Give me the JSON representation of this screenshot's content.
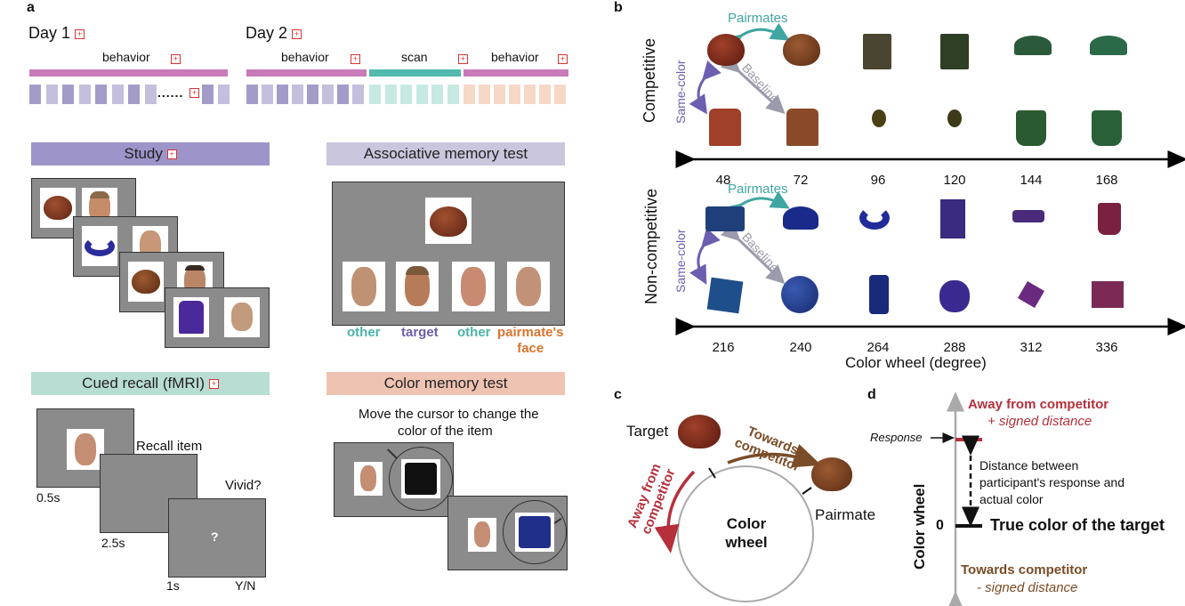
{
  "panels": {
    "a": "a",
    "b": "b",
    "c": "c",
    "d": "d"
  },
  "timeline": {
    "day1": "Day 1",
    "day2": "Day 2",
    "day1_phase": "behavior",
    "day2_phases": [
      "behavior",
      "scan",
      "behavior"
    ],
    "ellipsis": "......",
    "colors": {
      "behavior1": "#c97bb9",
      "scan": "#52b9ae",
      "behavior2": "#c97bb9",
      "study_sq": "#a39cc9",
      "scan_sq": "#a8ddd2",
      "beh2_sq": "#f3c2a8"
    }
  },
  "study": {
    "title": "Study",
    "color": "#9d95c9"
  },
  "assoc": {
    "title": "Associative memory test",
    "color": "#c9c6dd",
    "labels": [
      "other",
      "target",
      "other",
      "pairmate's\nface"
    ],
    "label_colors": [
      "#4bb3a8",
      "#6e5ea9",
      "#4bb3a8",
      "#d9742e"
    ]
  },
  "recall": {
    "title": "Cued recall (fMRI)",
    "color": "#b8ddd3",
    "prompt1": "Recall item",
    "prompt2": "Vivid?",
    "question": "?",
    "t1": "0.5s",
    "t2": "2.5s",
    "t3": "1s",
    "yn": "Y/N"
  },
  "colortest": {
    "title": "Color memory test",
    "color": "#efc3b1",
    "instruction_line1": "Move the cursor to change the",
    "instruction_line2": "color of the item"
  },
  "panel_b": {
    "competitive": "Competitive",
    "noncompetitive": "Non-competitive",
    "pairmates": "Pairmates",
    "same_color": "Same-color",
    "baseline": "Baseline",
    "ticks_top": [
      "48",
      "72",
      "96",
      "120",
      "144",
      "168"
    ],
    "ticks_bottom": [
      "216",
      "240",
      "264",
      "288",
      "312",
      "336"
    ],
    "axis_title": "Color wheel (degree)",
    "colors": {
      "pairmates": "#3fa6a1",
      "same_color": "#6c5fb0",
      "baseline": "#9b9bab"
    }
  },
  "panel_c": {
    "target": "Target",
    "towards_line1": "Towards",
    "towards_line2": "competitor",
    "away_line1": "Away from",
    "away_line2": "competitor",
    "wheel_line1": "Color",
    "wheel_line2": "wheel",
    "pairmate": "Pairmate",
    "colors": {
      "towards": "#7a4c27",
      "away": "#b5303c"
    }
  },
  "panel_d": {
    "away": "Away from competitor",
    "plus_signed": "+ signed distance",
    "response": "Response",
    "distance_line1": "Distance between",
    "distance_line2": "participant's response and",
    "distance_line3": "actual color",
    "zero": "0",
    "true_color": "True color of the target",
    "axis_label": "Color wheel",
    "towards": "Towards competitor",
    "minus_signed": "- signed distance",
    "colors": {
      "away": "#b5303c",
      "towards": "#7a4c27"
    }
  }
}
